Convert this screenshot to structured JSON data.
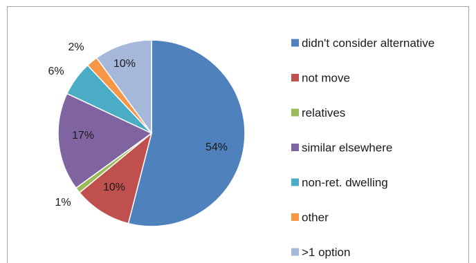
{
  "chart_data": {
    "type": "pie",
    "slices": [
      {
        "label": "didn't consider alternative",
        "value": 54,
        "value_label": "54%",
        "color": "#4f81bd"
      },
      {
        "label": "not move",
        "value": 10,
        "value_label": "10%",
        "color": "#c0504d"
      },
      {
        "label": "relatives",
        "value": 1,
        "value_label": "1%",
        "color": "#9bbb59"
      },
      {
        "label": "similar elsewhere",
        "value": 17,
        "value_label": "17%",
        "color": "#8064a2"
      },
      {
        "label": "non-ret. dwelling",
        "value": 6,
        "value_label": "6%",
        "color": "#4bacc6"
      },
      {
        "label": "other",
        "value": 2,
        "value_label": "2%",
        "color": "#f79646"
      },
      {
        "label": ">1 option",
        "value": 10,
        "value_label": "10%",
        "color": "#a5b8d9"
      }
    ],
    "start_angle": "12 o'clock",
    "direction": "clockwise",
    "legend_position": "right",
    "grid": false
  }
}
